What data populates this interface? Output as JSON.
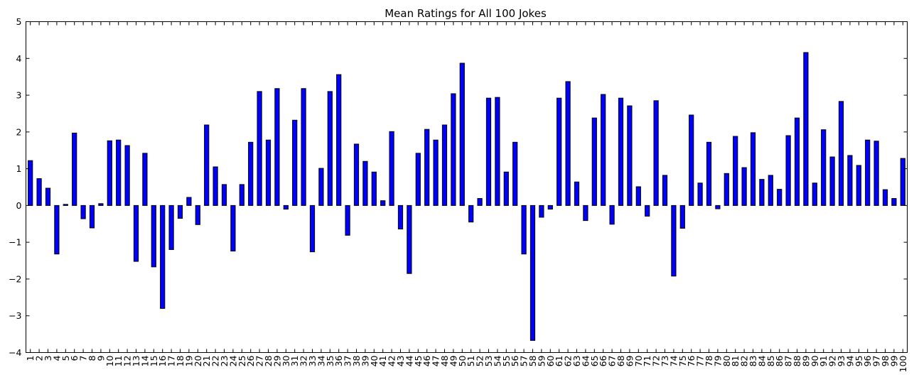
{
  "chart_data": {
    "type": "bar",
    "title": "Mean Ratings for All 100 Jokes",
    "xlabel": "",
    "ylabel": "",
    "ylim": [
      -4,
      5
    ],
    "yticks": [
      -4,
      -3,
      -2,
      -1,
      0,
      1,
      2,
      3,
      4,
      5
    ],
    "grid": false,
    "legend": "none",
    "bar_color": "#0000ff",
    "categories": [
      "1",
      "2",
      "3",
      "4",
      "5",
      "6",
      "7",
      "8",
      "9",
      "10",
      "11",
      "12",
      "13",
      "14",
      "15",
      "16",
      "17",
      "18",
      "19",
      "20",
      "21",
      "22",
      "23",
      "24",
      "25",
      "26",
      "27",
      "28",
      "29",
      "30",
      "31",
      "32",
      "33",
      "34",
      "35",
      "36",
      "37",
      "38",
      "39",
      "40",
      "41",
      "42",
      "43",
      "44",
      "45",
      "46",
      "47",
      "48",
      "49",
      "50",
      "51",
      "52",
      "53",
      "54",
      "55",
      "56",
      "57",
      "58",
      "59",
      "60",
      "61",
      "62",
      "63",
      "64",
      "65",
      "66",
      "67",
      "68",
      "69",
      "70",
      "71",
      "72",
      "73",
      "74",
      "75",
      "76",
      "77",
      "78",
      "79",
      "80",
      "81",
      "82",
      "83",
      "84",
      "85",
      "86",
      "87",
      "88",
      "89",
      "90",
      "91",
      "92",
      "93",
      "94",
      "95",
      "96",
      "97",
      "98",
      "99",
      "100"
    ],
    "values": [
      1.22,
      0.73,
      0.47,
      -1.32,
      0.03,
      1.97,
      -0.36,
      -0.61,
      0.05,
      1.76,
      1.78,
      1.63,
      -1.52,
      1.42,
      -1.67,
      -2.8,
      -1.2,
      -0.35,
      0.22,
      -0.52,
      2.19,
      1.05,
      0.57,
      -1.24,
      0.57,
      1.72,
      3.1,
      1.78,
      3.18,
      -0.1,
      2.32,
      3.18,
      -1.26,
      1.01,
      3.1,
      3.56,
      -0.81,
      1.67,
      1.2,
      0.91,
      0.13,
      2.01,
      -0.64,
      -1.85,
      1.42,
      2.07,
      1.78,
      2.19,
      3.04,
      3.87,
      -0.45,
      0.19,
      2.92,
      2.94,
      0.91,
      1.72,
      -1.32,
      -3.67,
      -0.32,
      -0.1,
      2.92,
      3.37,
      0.64,
      -0.41,
      2.38,
      3.02,
      -0.51,
      2.92,
      2.71,
      0.51,
      -0.29,
      2.85,
      0.82,
      -1.92,
      -0.62,
      2.46,
      0.61,
      1.72,
      -0.09,
      0.87,
      1.88,
      1.03,
      1.98,
      0.71,
      0.82,
      0.44,
      1.9,
      2.38,
      4.16,
      0.61,
      2.06,
      1.32,
      2.83,
      1.36,
      1.09,
      1.78,
      1.75,
      0.43,
      0.19,
      1.28
    ]
  }
}
